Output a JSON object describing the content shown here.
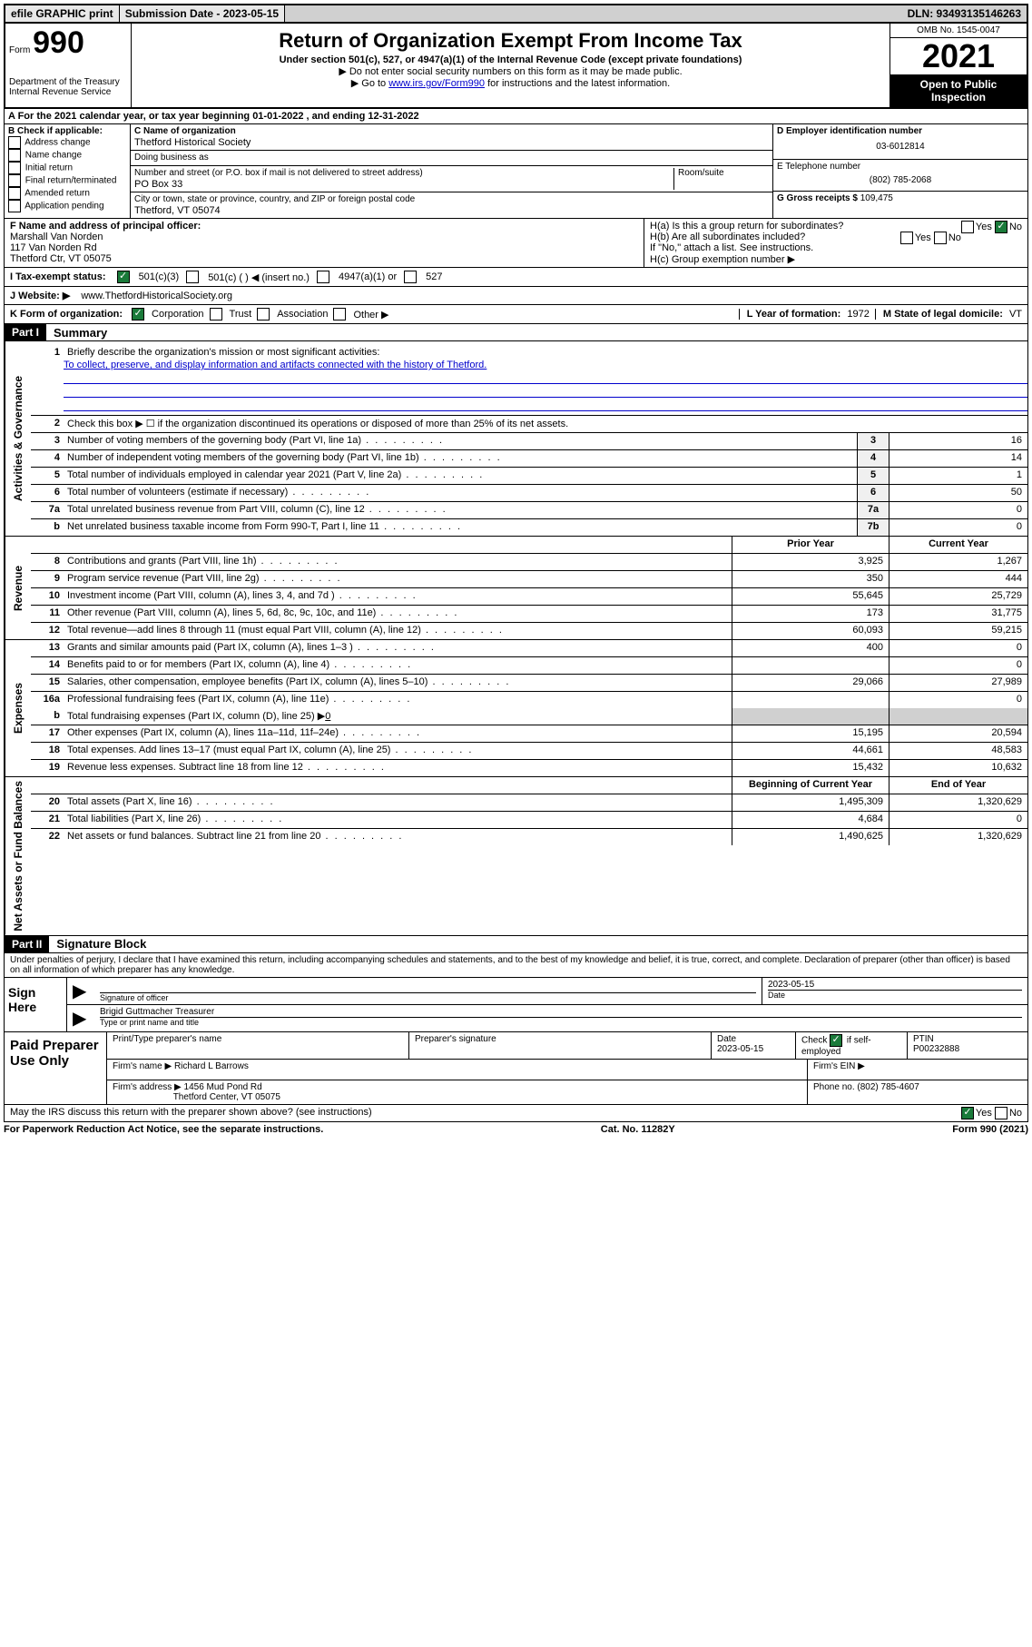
{
  "topbar": {
    "efile": "efile GRAPHIC print",
    "submission_label": "Submission Date - 2023-05-15",
    "dln": "DLN: 93493135146263"
  },
  "header": {
    "form_label": "Form",
    "form_number": "990",
    "dept": "Department of the Treasury",
    "irs": "Internal Revenue Service",
    "title": "Return of Organization Exempt From Income Tax",
    "sub": "Under section 501(c), 527, or 4947(a)(1) of the Internal Revenue Code (except private foundations)",
    "note1": "▶ Do not enter social security numbers on this form as it may be made public.",
    "note2_pre": "▶ Go to ",
    "note2_link": "www.irs.gov/Form990",
    "note2_post": " for instructions and the latest information.",
    "omb": "OMB No. 1545-0047",
    "year": "2021",
    "open_public": "Open to Public Inspection"
  },
  "row_a": "A For the 2021 calendar year, or tax year beginning 01-01-2022   , and ending 12-31-2022",
  "section_b": {
    "title": "B Check if applicable:",
    "opts": [
      "Address change",
      "Name change",
      "Initial return",
      "Final return/terminated",
      "Amended return",
      "Application pending"
    ]
  },
  "section_c": {
    "name_label": "C Name of organization",
    "name": "Thetford Historical Society",
    "dba_label": "Doing business as",
    "dba": "",
    "street_label": "Number and street (or P.O. box if mail is not delivered to street address)",
    "street": "PO Box 33",
    "room_label": "Room/suite",
    "city_label": "City or town, state or province, country, and ZIP or foreign postal code",
    "city": "Thetford, VT  05074"
  },
  "section_d": {
    "ein_label": "D Employer identification number",
    "ein": "03-6012814",
    "phone_label": "E Telephone number",
    "phone": "(802) 785-2068",
    "gross_label": "G Gross receipts $",
    "gross": "109,475"
  },
  "section_f": {
    "label": "F Name and address of principal officer:",
    "name": "Marshall Van Norden",
    "addr1": "117 Van Norden Rd",
    "addr2": "Thetford Ctr, VT  05075"
  },
  "section_h": {
    "ha_label": "H(a)  Is this a group return for subordinates?",
    "yes": "Yes",
    "no": "No",
    "hb_label": "H(b)  Are all subordinates included?",
    "hb_note": "If \"No,\" attach a list. See instructions.",
    "hc_label": "H(c)  Group exemption number ▶"
  },
  "row_i": {
    "label": "I   Tax-exempt status:",
    "opt1": "501(c)(3)",
    "opt2": "501(c) (   ) ◀ (insert no.)",
    "opt3": "4947(a)(1) or",
    "opt4": "527"
  },
  "row_j": {
    "label": "J   Website: ▶",
    "url": "www.ThetfordHistoricalSociety.org"
  },
  "row_k": {
    "label": "K Form of organization:",
    "corp": "Corporation",
    "trust": "Trust",
    "assoc": "Association",
    "other": "Other ▶"
  },
  "row_l": {
    "label": "L Year of formation:",
    "val": "1972"
  },
  "row_m": {
    "label": "M State of legal domicile:",
    "val": "VT"
  },
  "part1": {
    "header": "Part I",
    "title": "Summary"
  },
  "governance": {
    "side": "Activities & Governance",
    "l1_label": "Briefly describe the organization's mission or most significant activities:",
    "l1_text": "To collect, preserve, and display information and artifacts connected with the history of Thetford.",
    "l2": "Check this box ▶ ☐  if the organization discontinued its operations or disposed of more than 25% of its net assets.",
    "l3": "Number of voting members of the governing body (Part VI, line 1a)",
    "l3_val": "16",
    "l4": "Number of independent voting members of the governing body (Part VI, line 1b)",
    "l4_val": "14",
    "l5": "Total number of individuals employed in calendar year 2021 (Part V, line 2a)",
    "l5_val": "1",
    "l6": "Total number of volunteers (estimate if necessary)",
    "l6_val": "50",
    "l7a": "Total unrelated business revenue from Part VIII, column (C), line 12",
    "l7a_val": "0",
    "l7b": "Net unrelated business taxable income from Form 990-T, Part I, line 11",
    "l7b_val": "0"
  },
  "revenue": {
    "side": "Revenue",
    "prior_hdr": "Prior Year",
    "curr_hdr": "Current Year",
    "rows": [
      {
        "n": "8",
        "d": "Contributions and grants (Part VIII, line 1h)",
        "p": "3,925",
        "c": "1,267"
      },
      {
        "n": "9",
        "d": "Program service revenue (Part VIII, line 2g)",
        "p": "350",
        "c": "444"
      },
      {
        "n": "10",
        "d": "Investment income (Part VIII, column (A), lines 3, 4, and 7d )",
        "p": "55,645",
        "c": "25,729"
      },
      {
        "n": "11",
        "d": "Other revenue (Part VIII, column (A), lines 5, 6d, 8c, 9c, 10c, and 11e)",
        "p": "173",
        "c": "31,775"
      },
      {
        "n": "12",
        "d": "Total revenue—add lines 8 through 11 (must equal Part VIII, column (A), line 12)",
        "p": "60,093",
        "c": "59,215"
      }
    ]
  },
  "expenses": {
    "side": "Expenses",
    "rows": [
      {
        "n": "13",
        "d": "Grants and similar amounts paid (Part IX, column (A), lines 1–3 )",
        "p": "400",
        "c": "0"
      },
      {
        "n": "14",
        "d": "Benefits paid to or for members (Part IX, column (A), line 4)",
        "p": "",
        "c": "0"
      },
      {
        "n": "15",
        "d": "Salaries, other compensation, employee benefits (Part IX, column (A), lines 5–10)",
        "p": "29,066",
        "c": "27,989"
      },
      {
        "n": "16a",
        "d": "Professional fundraising fees (Part IX, column (A), line 11e)",
        "p": "",
        "c": "0"
      }
    ],
    "l16b_pre": "Total fundraising expenses (Part IX, column (D), line 25) ▶",
    "l16b_val": "0",
    "rows2": [
      {
        "n": "17",
        "d": "Other expenses (Part IX, column (A), lines 11a–11d, 11f–24e)",
        "p": "15,195",
        "c": "20,594"
      },
      {
        "n": "18",
        "d": "Total expenses. Add lines 13–17 (must equal Part IX, column (A), line 25)",
        "p": "44,661",
        "c": "48,583"
      },
      {
        "n": "19",
        "d": "Revenue less expenses. Subtract line 18 from line 12",
        "p": "15,432",
        "c": "10,632"
      }
    ]
  },
  "netassets": {
    "side": "Net Assets or Fund Balances",
    "begin_hdr": "Beginning of Current Year",
    "end_hdr": "End of Year",
    "rows": [
      {
        "n": "20",
        "d": "Total assets (Part X, line 16)",
        "p": "1,495,309",
        "c": "1,320,629"
      },
      {
        "n": "21",
        "d": "Total liabilities (Part X, line 26)",
        "p": "4,684",
        "c": "0"
      },
      {
        "n": "22",
        "d": "Net assets or fund balances. Subtract line 21 from line 20",
        "p": "1,490,625",
        "c": "1,320,629"
      }
    ]
  },
  "part2": {
    "header": "Part II",
    "title": "Signature Block"
  },
  "declaration": "Under penalties of perjury, I declare that I have examined this return, including accompanying schedules and statements, and to the best of my knowledge and belief, it is true, correct, and complete. Declaration of preparer (other than officer) is based on all information of which preparer has any knowledge.",
  "sign": {
    "label": "Sign Here",
    "sig_label": "Signature of officer",
    "date_label": "Date",
    "date": "2023-05-15",
    "name": "Brigid Guttmacher  Treasurer",
    "name_label": "Type or print name and title"
  },
  "preparer": {
    "label": "Paid Preparer Use Only",
    "name_label": "Print/Type preparer's name",
    "sig_label": "Preparer's signature",
    "date_label": "Date",
    "date": "2023-05-15",
    "check_label": "Check",
    "self_emp": "if self-employed",
    "ptin_label": "PTIN",
    "ptin": "P00232888",
    "firm_name_label": "Firm's name      ▶",
    "firm_name": "Richard L Barrows",
    "firm_ein_label": "Firm's EIN ▶",
    "firm_addr_label": "Firm's address ▶",
    "firm_addr1": "1456 Mud Pond Rd",
    "firm_addr2": "Thetford Center, VT  05075",
    "phone_label": "Phone no.",
    "phone": "(802) 785-4607"
  },
  "footer": {
    "discuss": "May the IRS discuss this return with the preparer shown above? (see instructions)",
    "yes": "Yes",
    "no": "No",
    "paperwork": "For Paperwork Reduction Act Notice, see the separate instructions.",
    "catno": "Cat. No. 11282Y",
    "formno": "Form 990 (2021)"
  }
}
